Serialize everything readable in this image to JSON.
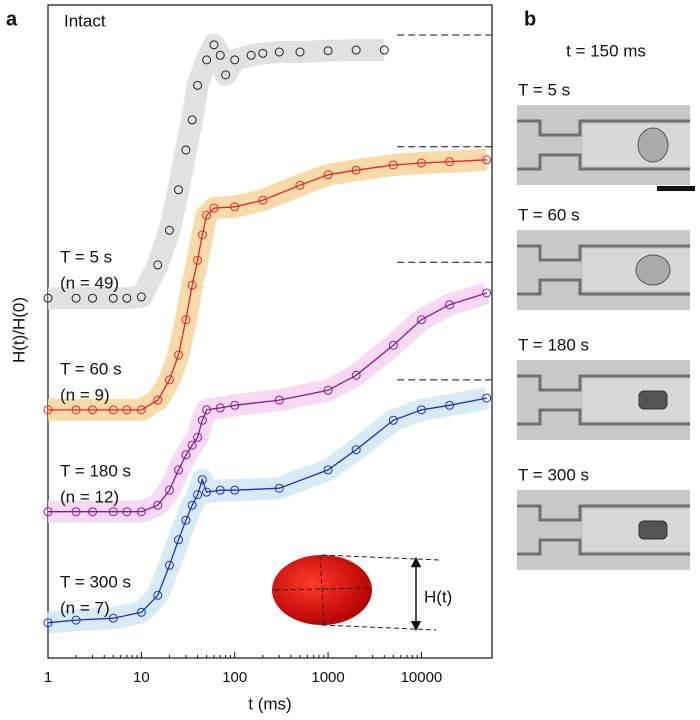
{
  "panel_a_label": "a",
  "panel_b_label": "b",
  "chart_data": {
    "type": "scatter",
    "annotation": "Intact",
    "xlabel": "t (ms)",
    "ylabel": "H(t)/H(0)",
    "xscale": "log",
    "xlim": [
      1,
      57000
    ],
    "ylim": [
      0,
      10
    ],
    "xticks": [
      1,
      10,
      100,
      1000,
      10000
    ],
    "inset_label": "H(t)",
    "plateau_start_x": 5500,
    "series": [
      {
        "name": "T = 5 s",
        "n_label": "(n = 49)",
        "color": "#222222",
        "band_color": "#dcdcdc",
        "fit": false,
        "plateau": 9.54,
        "x": [
          1,
          2,
          3,
          5,
          7,
          10,
          15,
          20,
          25,
          30,
          35,
          40,
          50,
          60,
          70,
          80,
          100,
          150,
          200,
          300,
          500,
          1000,
          2000,
          4000
        ],
        "values": [
          5.51,
          5.51,
          5.51,
          5.51,
          5.51,
          5.53,
          6.02,
          6.55,
          7.17,
          7.78,
          8.24,
          8.77,
          9.16,
          9.39,
          9.23,
          8.93,
          9.16,
          9.23,
          9.26,
          9.28,
          9.28,
          9.3,
          9.31,
          9.31
        ]
      },
      {
        "name": "T = 60 s",
        "n_label": "(n = 9)",
        "color": "#e8231e",
        "band_color": "#f8d59a",
        "fit": true,
        "plateau": 7.83,
        "x": [
          1,
          2,
          3,
          5,
          7,
          10,
          15,
          20,
          25,
          30,
          35,
          40,
          45,
          50,
          60,
          100,
          200,
          500,
          1000,
          2000,
          5000,
          10000,
          20000,
          50000
        ],
        "values": [
          3.8,
          3.8,
          3.8,
          3.8,
          3.8,
          3.8,
          3.95,
          4.26,
          4.64,
          5.18,
          5.71,
          6.09,
          6.48,
          6.78,
          6.89,
          6.91,
          7.01,
          7.24,
          7.4,
          7.47,
          7.55,
          7.58,
          7.6,
          7.63
        ]
      },
      {
        "name": "T = 180 s",
        "n_label": "(n = 12)",
        "color": "#8a1a8a",
        "band_color": "#f6d2f2",
        "fit": true,
        "plateau": 6.06,
        "x": [
          1,
          2,
          3,
          5,
          7,
          10,
          15,
          20,
          25,
          30,
          35,
          40,
          45,
          50,
          70,
          100,
          300,
          1000,
          2000,
          5000,
          10000,
          20000,
          50000
        ],
        "values": [
          2.24,
          2.24,
          2.24,
          2.24,
          2.24,
          2.24,
          2.34,
          2.57,
          2.88,
          3.11,
          3.26,
          3.38,
          3.64,
          3.8,
          3.83,
          3.87,
          3.95,
          4.1,
          4.33,
          4.79,
          5.18,
          5.41,
          5.59
        ]
      },
      {
        "name": "T = 300 s",
        "n_label": "(n = 7)",
        "color": "#1a2fd0",
        "band_color": "#cfe8f5",
        "fit": true,
        "plateau": 4.26,
        "x": [
          1,
          2,
          5,
          10,
          15,
          20,
          25,
          30,
          35,
          40,
          45,
          50,
          70,
          100,
          300,
          1000,
          2000,
          5000,
          10000,
          20000,
          50000
        ],
        "values": [
          0.54,
          0.58,
          0.61,
          0.7,
          0.96,
          1.42,
          1.81,
          2.11,
          2.34,
          2.5,
          2.73,
          2.54,
          2.57,
          2.57,
          2.6,
          2.88,
          3.19,
          3.64,
          3.8,
          3.87,
          3.98
        ]
      }
    ]
  },
  "panel_b": {
    "title": "t = 150 ms",
    "images": [
      {
        "label": "T = 5 s"
      },
      {
        "label": "T = 60 s"
      },
      {
        "label": "T = 180 s"
      },
      {
        "label": "T = 300 s"
      }
    ]
  }
}
